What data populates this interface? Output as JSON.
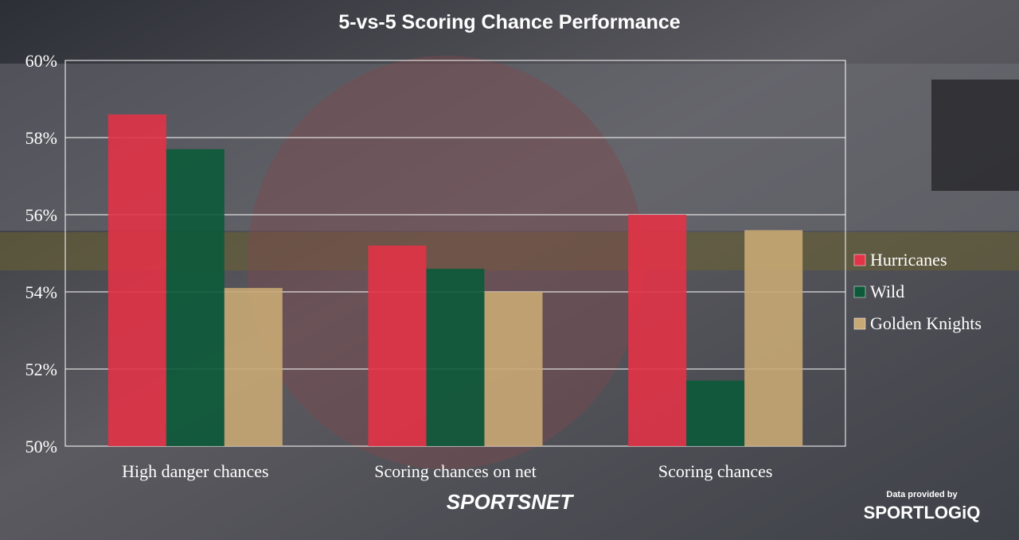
{
  "chart_data": {
    "type": "bar",
    "title": "5-vs-5 Scoring Chance Performance",
    "categories": [
      "High danger chances",
      "Scoring chances on net",
      "Scoring chances"
    ],
    "series": [
      {
        "name": "Hurricanes",
        "color": "#e23347",
        "values": [
          58.6,
          55.2,
          56.0
        ]
      },
      {
        "name": "Wild",
        "color": "#0c5a3a",
        "values": [
          57.7,
          54.6,
          51.7
        ]
      },
      {
        "name": "Golden Knights",
        "color": "#c8a874",
        "values": [
          54.1,
          54.0,
          55.6
        ]
      }
    ],
    "ylim": [
      50,
      60
    ],
    "yticks": [
      {
        "value": 50,
        "label": "50%"
      },
      {
        "value": 52,
        "label": "52%"
      },
      {
        "value": 54,
        "label": "54%"
      },
      {
        "value": 56,
        "label": "56%"
      },
      {
        "value": 58,
        "label": "58%"
      },
      {
        "value": 60,
        "label": "60%"
      }
    ],
    "grid": true,
    "legend": "right",
    "brand": "SPORTSNET",
    "source_note": "Data provided by",
    "source": "SPORTLOGiQ"
  }
}
